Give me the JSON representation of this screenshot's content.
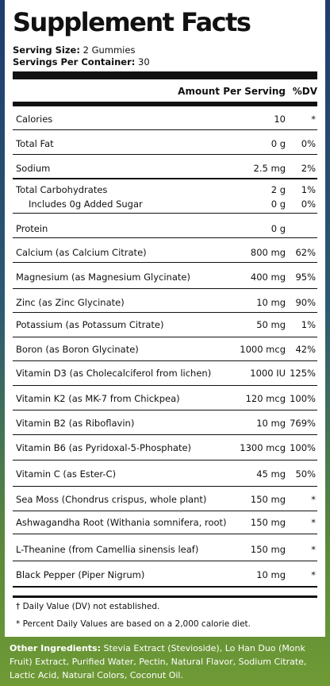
{
  "title": "Supplement Facts",
  "serving_size_label": "Serving Size:",
  "serving_size_value": "2 Gummies",
  "servings_per_container_label": "Servings Per Container:",
  "servings_per_container_value": "30",
  "header": {
    "amount": "Amount Per Serving",
    "dv": "%DV"
  },
  "rows": [
    {
      "name": "Calories",
      "amount": "10",
      "dv": "*"
    },
    {
      "name": "Total Fat",
      "amount": "0 g",
      "dv": "0%"
    },
    {
      "name": "Sodium",
      "amount": "2.5 mg",
      "dv": "2%"
    },
    {
      "name": "Total Carbohydrates",
      "amount": "2 g",
      "dv": "1%"
    },
    {
      "name": "Includes 0g Added Sugar",
      "amount": "0 g",
      "dv": "0%"
    },
    {
      "name": "Protein",
      "amount": "0 g",
      "dv": ""
    },
    {
      "name": "Calcium (as Calcium Citrate)",
      "amount": "800 mg",
      "dv": "62%"
    },
    {
      "name": "Magnesium (as Magnesium Glycinate)",
      "amount": "400 mg",
      "dv": "95%"
    },
    {
      "name": "Zinc (as Zinc Glycinate)",
      "amount": "10 mg",
      "dv": "90%"
    },
    {
      "name": "Potassium (as Potassum Citrate)",
      "amount": "50 mg",
      "dv": "1%"
    },
    {
      "name": "Boron (as Boron Glycinate)",
      "amount": "1000 mcg",
      "dv": "42%"
    },
    {
      "name": "Vitamin D3 (as Cholecalciferol from lichen)",
      "amount": "1000 IU",
      "dv": "125%"
    },
    {
      "name": "Vitamin K2 (as MK-7 from Chickpea)",
      "amount": "120 mcg",
      "dv": "100%"
    },
    {
      "name": "Vitamin B2 (as Riboflavin)",
      "amount": "10 mg",
      "dv": "769%"
    },
    {
      "name": "Vitamin B6 (as Pyridoxal-5-Phosphate)",
      "amount": "1300 mcg",
      "dv": "100%"
    },
    {
      "name": "Vitamin C (as Ester-C)",
      "amount": "45 mg",
      "dv": "50%"
    },
    {
      "name": "Sea Moss (Chondrus crispus, whole plant)",
      "amount": "150 mg",
      "dv": "*"
    },
    {
      "name": "Ashwagandha Root (Withania somnifera, root)",
      "amount": "150 mg",
      "dv": "*"
    },
    {
      "name": "L-Theanine (from Camellia sinensis leaf)",
      "amount": "150 mg",
      "dv": "*"
    },
    {
      "name": "Black Pepper (Piper Nigrum)",
      "amount": "10 mg",
      "dv": "*"
    }
  ],
  "footnotes": [
    "† Daily Value (DV) not established.",
    "* Percent Daily Values are based on a 2,000 calorie diet."
  ],
  "other_ingredients_label": "Other Ingredients:",
  "other_ingredients_text": "Stevia Extract (Stevioside), Lo Han Duo (Monk Fruit) Extract, Purified Water, Pectin, Natural Flavor, Sodium Citrate, Lactic Acid, Natural Colors, Coconut Oil."
}
